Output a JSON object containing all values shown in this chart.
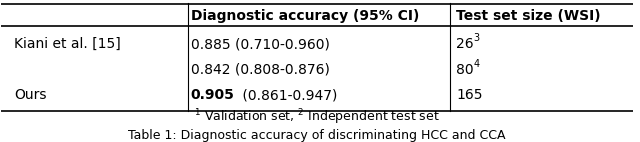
{
  "col_headers": [
    "",
    "Diagnostic accuracy (95% CI)",
    "Test set size (WSI)"
  ],
  "rows": [
    [
      "Kiani et al. [15]",
      "0.885 (0.710-0.960)",
      "26³"
    ],
    [
      "",
      "0.842 (0.808-0.876)",
      "80⁴"
    ],
    [
      "Ours",
      "\\textbf{0.905} (0.861-0.947)",
      "165"
    ]
  ],
  "footnote": "$^{1}$ Validation set, $^{2}$ Independent test set",
  "caption": "Table 1: Diagnostic accuracy of discriminating HCC and CCA",
  "bg_color": "#ffffff",
  "text_color": "#000000",
  "font_size": 10,
  "header_font_size": 10
}
